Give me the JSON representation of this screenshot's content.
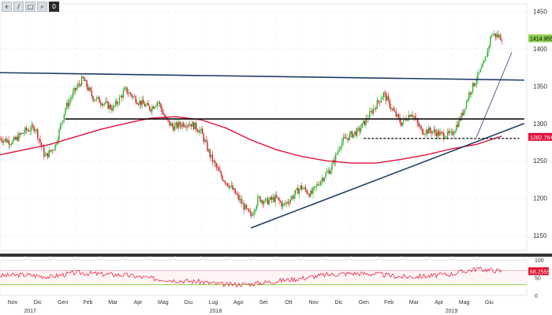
{
  "toolbar": {
    "buttons": [
      {
        "name": "crosshair-tool-button",
        "glyph": "+"
      },
      {
        "name": "draw-line-tool-button",
        "glyph": "/"
      },
      {
        "name": "zoom-tool-button",
        "glyph": "□"
      },
      {
        "name": "magnify-tool-button",
        "glyph": "⌕"
      },
      {
        "name": "settings-tool-button",
        "glyph": "0"
      }
    ]
  },
  "chart_data": {
    "type": "candlestick",
    "price_axis": {
      "ylim": [
        1130,
        1460
      ],
      "ticks": [
        1150,
        1200,
        1250,
        1300,
        1350,
        1400,
        1450
      ]
    },
    "indicator_axis": {
      "ylim": [
        0,
        100
      ],
      "ticks": [
        0,
        50,
        100
      ]
    },
    "labels": {
      "last_price": "1414.9552",
      "ma_value": "1282.7647",
      "rsi_value": "68.2555"
    },
    "months": [
      {
        "label": "Nov"
      },
      {
        "label": "Dic"
      },
      {
        "label": "Gen"
      },
      {
        "label": "Feb"
      },
      {
        "label": "Mar"
      },
      {
        "label": "Apr"
      },
      {
        "label": "Mag"
      },
      {
        "label": "Giu"
      },
      {
        "label": "Lug"
      },
      {
        "label": "Ago"
      },
      {
        "label": "Set"
      },
      {
        "label": "Ott"
      },
      {
        "label": "Nov"
      },
      {
        "label": "Dic"
      },
      {
        "label": "Gen"
      },
      {
        "label": "Feb"
      },
      {
        "label": "Mar"
      },
      {
        "label": "Apr"
      },
      {
        "label": "Mag"
      },
      {
        "label": "Giu"
      }
    ],
    "years": [
      "2017",
      "2018",
      "2019"
    ],
    "price_path": [
      [
        0,
        1280
      ],
      [
        0.5,
        1275
      ],
      [
        1,
        1290
      ],
      [
        1.4,
        1295
      ],
      [
        1.8,
        1255
      ],
      [
        2.2,
        1270
      ],
      [
        2.6,
        1320
      ],
      [
        3,
        1345
      ],
      [
        3.3,
        1360
      ],
      [
        3.7,
        1335
      ],
      [
        4,
        1330
      ],
      [
        4.5,
        1320
      ],
      [
        5,
        1345
      ],
      [
        5.5,
        1330
      ],
      [
        6,
        1320
      ],
      [
        6.3,
        1330
      ],
      [
        6.6,
        1305
      ],
      [
        6.9,
        1295
      ],
      [
        7.3,
        1300
      ],
      [
        7.6,
        1300
      ],
      [
        8,
        1290
      ],
      [
        8.4,
        1255
      ],
      [
        8.8,
        1230
      ],
      [
        9.2,
        1215
      ],
      [
        9.6,
        1195
      ],
      [
        10,
        1175
      ],
      [
        10.3,
        1200
      ],
      [
        10.6,
        1195
      ],
      [
        11,
        1200
      ],
      [
        11.3,
        1190
      ],
      [
        11.6,
        1200
      ],
      [
        12,
        1215
      ],
      [
        12.4,
        1205
      ],
      [
        12.8,
        1225
      ],
      [
        13.2,
        1240
      ],
      [
        13.6,
        1275
      ],
      [
        14,
        1285
      ],
      [
        14.3,
        1290
      ],
      [
        14.7,
        1310
      ],
      [
        15,
        1325
      ],
      [
        15.3,
        1340
      ],
      [
        15.7,
        1315
      ],
      [
        16,
        1300
      ],
      [
        16.4,
        1315
      ],
      [
        16.8,
        1290
      ],
      [
        17.2,
        1290
      ],
      [
        17.6,
        1285
      ],
      [
        18,
        1285
      ],
      [
        18.4,
        1310
      ],
      [
        18.7,
        1340
      ],
      [
        19,
        1360
      ],
      [
        19.3,
        1380
      ],
      [
        19.6,
        1420
      ],
      [
        20,
        1415
      ]
    ],
    "ma_path": [
      [
        0,
        1258
      ],
      [
        1,
        1265
      ],
      [
        2,
        1272
      ],
      [
        3,
        1282
      ],
      [
        4,
        1292
      ],
      [
        5,
        1300
      ],
      [
        6,
        1307
      ],
      [
        7,
        1309
      ],
      [
        8,
        1305
      ],
      [
        9,
        1294
      ],
      [
        10,
        1278
      ],
      [
        11,
        1265
      ],
      [
        12,
        1256
      ],
      [
        13,
        1250
      ],
      [
        14,
        1247
      ],
      [
        15,
        1247
      ],
      [
        16,
        1252
      ],
      [
        17,
        1258
      ],
      [
        18,
        1266
      ],
      [
        19,
        1272
      ],
      [
        20,
        1283
      ]
    ],
    "rsi_path": [
      [
        0,
        55
      ],
      [
        1,
        58
      ],
      [
        2,
        52
      ],
      [
        3,
        64
      ],
      [
        4,
        60
      ],
      [
        5,
        57
      ],
      [
        6,
        48
      ],
      [
        7,
        42
      ],
      [
        8,
        38
      ],
      [
        9,
        30
      ],
      [
        10,
        32
      ],
      [
        11,
        40
      ],
      [
        12,
        48
      ],
      [
        13,
        58
      ],
      [
        14,
        62
      ],
      [
        15,
        60
      ],
      [
        16,
        52
      ],
      [
        17,
        54
      ],
      [
        18,
        60
      ],
      [
        19,
        75
      ],
      [
        20,
        68
      ]
    ],
    "rsi_bands": {
      "overbought": 70,
      "oversold": 30
    },
    "trendlines": [
      {
        "name": "long-resistance-line",
        "from": [
          0,
          1368
        ],
        "to": [
          20.9,
          1358
        ]
      },
      {
        "name": "horizontal-resistance-line",
        "from": [
          2.6,
          1306
        ],
        "to": [
          20.9,
          1306
        ]
      },
      {
        "name": "rising-support-line",
        "from": [
          10,
          1160
        ],
        "to": [
          20.9,
          1300
        ]
      },
      {
        "name": "short-support-line",
        "from": [
          19,
          1282
        ],
        "to": [
          20.4,
          1395
        ]
      }
    ],
    "dashed_level": {
      "from": [
        14.5,
        1280
      ],
      "to": [
        20.7,
        1280
      ]
    },
    "grid": true,
    "colors": {
      "up": "#2fb02f",
      "down": "#cc2222",
      "ma": "#e0103a",
      "trend": "#1c3b66",
      "rsi": "#e4102c",
      "band": "#e8b4c0",
      "text": "#333333"
    }
  }
}
